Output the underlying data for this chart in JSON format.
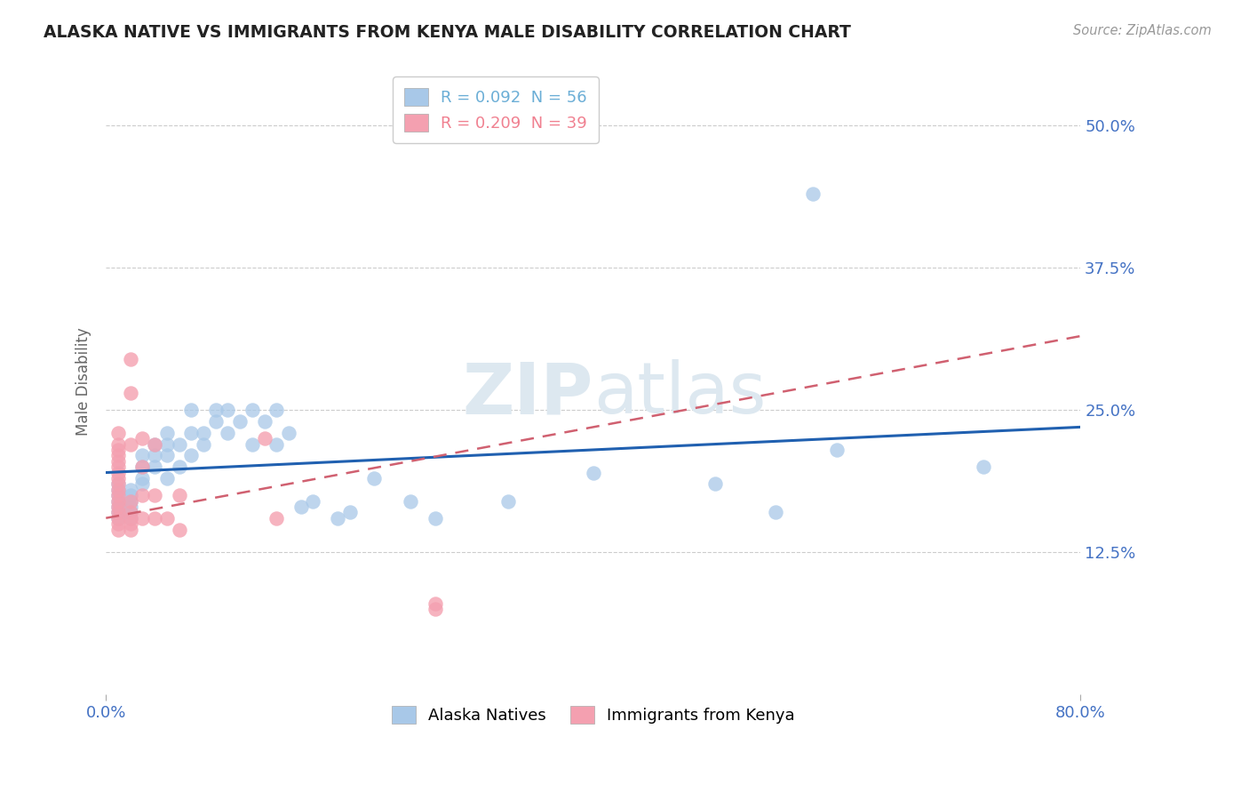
{
  "title": "ALASKA NATIVE VS IMMIGRANTS FROM KENYA MALE DISABILITY CORRELATION CHART",
  "source_text": "Source: ZipAtlas.com",
  "xlabel": "",
  "ylabel": "Male Disability",
  "xlim": [
    0.0,
    0.8
  ],
  "ylim": [
    0.0,
    0.55
  ],
  "x_ticks": [
    0.0,
    0.8
  ],
  "x_tick_labels": [
    "0.0%",
    "80.0%"
  ],
  "y_ticks": [
    0.125,
    0.25,
    0.375,
    0.5
  ],
  "y_tick_labels": [
    "12.5%",
    "25.0%",
    "37.5%",
    "50.0%"
  ],
  "legend_entries": [
    {
      "label": "R = 0.092  N = 56",
      "color": "#6baed6"
    },
    {
      "label": "R = 0.209  N = 39",
      "color": "#f08090"
    }
  ],
  "alaska_color": "#a8c8e8",
  "kenya_color": "#f4a0b0",
  "alaska_line_color": "#2060b0",
  "kenya_line_color": "#d06070",
  "alaska_R": 0.092,
  "alaska_N": 56,
  "kenya_R": 0.209,
  "kenya_N": 39,
  "alaska_points": [
    [
      0.01,
      0.155
    ],
    [
      0.01,
      0.16
    ],
    [
      0.01,
      0.165
    ],
    [
      0.01,
      0.17
    ],
    [
      0.01,
      0.175
    ],
    [
      0.01,
      0.18
    ],
    [
      0.01,
      0.185
    ],
    [
      0.02,
      0.155
    ],
    [
      0.02,
      0.16
    ],
    [
      0.02,
      0.165
    ],
    [
      0.02,
      0.17
    ],
    [
      0.02,
      0.175
    ],
    [
      0.02,
      0.18
    ],
    [
      0.03,
      0.185
    ],
    [
      0.03,
      0.19
    ],
    [
      0.03,
      0.2
    ],
    [
      0.03,
      0.21
    ],
    [
      0.04,
      0.2
    ],
    [
      0.04,
      0.21
    ],
    [
      0.04,
      0.22
    ],
    [
      0.05,
      0.19
    ],
    [
      0.05,
      0.21
    ],
    [
      0.05,
      0.22
    ],
    [
      0.05,
      0.23
    ],
    [
      0.06,
      0.2
    ],
    [
      0.06,
      0.22
    ],
    [
      0.07,
      0.21
    ],
    [
      0.07,
      0.23
    ],
    [
      0.07,
      0.25
    ],
    [
      0.08,
      0.22
    ],
    [
      0.08,
      0.23
    ],
    [
      0.09,
      0.24
    ],
    [
      0.09,
      0.25
    ],
    [
      0.1,
      0.23
    ],
    [
      0.1,
      0.25
    ],
    [
      0.11,
      0.24
    ],
    [
      0.12,
      0.22
    ],
    [
      0.12,
      0.25
    ],
    [
      0.13,
      0.24
    ],
    [
      0.14,
      0.22
    ],
    [
      0.14,
      0.25
    ],
    [
      0.15,
      0.23
    ],
    [
      0.16,
      0.165
    ],
    [
      0.17,
      0.17
    ],
    [
      0.19,
      0.155
    ],
    [
      0.2,
      0.16
    ],
    [
      0.22,
      0.19
    ],
    [
      0.25,
      0.17
    ],
    [
      0.27,
      0.155
    ],
    [
      0.33,
      0.17
    ],
    [
      0.4,
      0.195
    ],
    [
      0.5,
      0.185
    ],
    [
      0.55,
      0.16
    ],
    [
      0.6,
      0.215
    ],
    [
      0.72,
      0.2
    ],
    [
      0.58,
      0.44
    ]
  ],
  "kenya_points": [
    [
      0.01,
      0.145
    ],
    [
      0.01,
      0.15
    ],
    [
      0.01,
      0.155
    ],
    [
      0.01,
      0.16
    ],
    [
      0.01,
      0.165
    ],
    [
      0.01,
      0.17
    ],
    [
      0.01,
      0.175
    ],
    [
      0.01,
      0.18
    ],
    [
      0.01,
      0.185
    ],
    [
      0.01,
      0.19
    ],
    [
      0.01,
      0.195
    ],
    [
      0.01,
      0.2
    ],
    [
      0.01,
      0.205
    ],
    [
      0.01,
      0.21
    ],
    [
      0.01,
      0.215
    ],
    [
      0.01,
      0.22
    ],
    [
      0.01,
      0.23
    ],
    [
      0.02,
      0.145
    ],
    [
      0.02,
      0.15
    ],
    [
      0.02,
      0.155
    ],
    [
      0.02,
      0.16
    ],
    [
      0.02,
      0.17
    ],
    [
      0.02,
      0.22
    ],
    [
      0.02,
      0.265
    ],
    [
      0.02,
      0.295
    ],
    [
      0.03,
      0.155
    ],
    [
      0.03,
      0.175
    ],
    [
      0.03,
      0.2
    ],
    [
      0.03,
      0.225
    ],
    [
      0.04,
      0.155
    ],
    [
      0.04,
      0.175
    ],
    [
      0.04,
      0.22
    ],
    [
      0.05,
      0.155
    ],
    [
      0.06,
      0.145
    ],
    [
      0.06,
      0.175
    ],
    [
      0.13,
      0.225
    ],
    [
      0.14,
      0.155
    ],
    [
      0.27,
      0.075
    ],
    [
      0.27,
      0.08
    ]
  ]
}
